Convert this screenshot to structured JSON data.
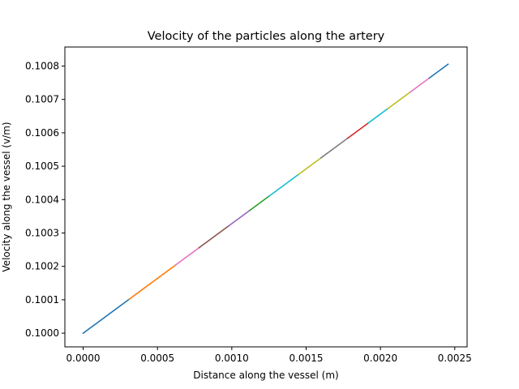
{
  "chart_data": {
    "type": "line",
    "title": "Velocity of the particles along the artery",
    "xlabel": "Distance along the vessel (m)",
    "ylabel": "Velocity along the vessel (v/m)",
    "xlim": [
      -0.000123,
      0.002583
    ],
    "ylim": [
      0.099959,
      0.100857
    ],
    "xticks": [
      0.0,
      0.0005,
      0.001,
      0.0015,
      0.002,
      0.0025
    ],
    "xtick_labels": [
      "0.0000",
      "0.0005",
      "0.0010",
      "0.0015",
      "0.0020",
      "0.0025"
    ],
    "yticks": [
      0.1,
      0.1001,
      0.1002,
      0.1003,
      0.1004,
      0.1005,
      0.1006,
      0.1007,
      0.1008
    ],
    "ytick_labels": [
      "0.1000",
      "0.1001",
      "0.1002",
      "0.1003",
      "0.1004",
      "0.1005",
      "0.1006",
      "0.1007",
      "0.1008"
    ],
    "grid": false,
    "legend": false,
    "series": [
      {
        "x": [
          0.0,
          0.00031
        ],
        "y": [
          0.1,
          0.1001017
        ],
        "color": "#1f77b4"
      },
      {
        "x": [
          0.00031,
          0.00062
        ],
        "y": [
          0.1001017,
          0.1002034
        ],
        "color": "#ff7f0e"
      },
      {
        "x": [
          0.00062,
          0.00078
        ],
        "y": [
          0.1002034,
          0.1002559
        ],
        "color": "#e377c2"
      },
      {
        "x": [
          0.00078,
          0.00098
        ],
        "y": [
          0.1002559,
          0.1003215
        ],
        "color": "#8c564b"
      },
      {
        "x": [
          0.00098,
          0.00112
        ],
        "y": [
          0.1003215,
          0.1003674
        ],
        "color": "#9467bd"
      },
      {
        "x": [
          0.00112,
          0.00125
        ],
        "y": [
          0.1003674,
          0.1004101
        ],
        "color": "#2ca02c"
      },
      {
        "x": [
          0.00125,
          0.00145
        ],
        "y": [
          0.1004101,
          0.1004757
        ],
        "color": "#17becf"
      },
      {
        "x": [
          0.00145,
          0.0016
        ],
        "y": [
          0.1004757,
          0.1005249
        ],
        "color": "#bcbd22"
      },
      {
        "x": [
          0.0016,
          0.00178
        ],
        "y": [
          0.1005249,
          0.100584
        ],
        "color": "#7f7f7f"
      },
      {
        "x": [
          0.00178,
          0.00192
        ],
        "y": [
          0.100584,
          0.1006299
        ],
        "color": "#d62728"
      },
      {
        "x": [
          0.00192,
          0.00205
        ],
        "y": [
          0.1006299,
          0.1006726
        ],
        "color": "#17becf"
      },
      {
        "x": [
          0.00205,
          0.0022
        ],
        "y": [
          0.1006726,
          0.1007218
        ],
        "color": "#bcbd22"
      },
      {
        "x": [
          0.0022,
          0.00233
        ],
        "y": [
          0.1007218,
          0.1007645
        ],
        "color": "#e377c2"
      },
      {
        "x": [
          0.00233,
          0.002455
        ],
        "y": [
          0.1007645,
          0.1008055
        ],
        "color": "#1f77b4"
      }
    ]
  }
}
